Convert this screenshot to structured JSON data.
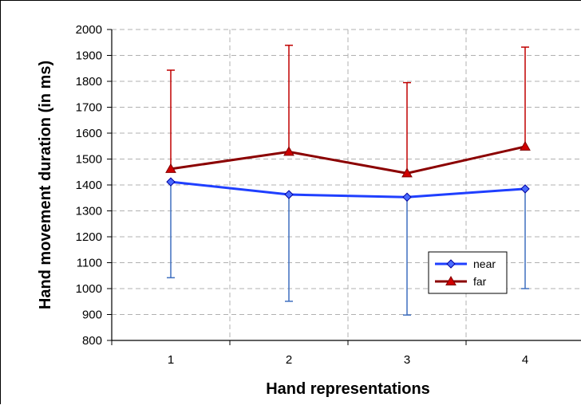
{
  "chart_data": {
    "type": "line",
    "title": "",
    "xlabel": "Hand representations",
    "ylabel": "Hand movement duration (in ms)",
    "categories": [
      "1",
      "2",
      "3",
      "4"
    ],
    "ylim": [
      800,
      2000
    ],
    "yticks": [
      "800",
      "900",
      "1000",
      "1100",
      "1200",
      "1300",
      "1400",
      "1500",
      "1600",
      "1700",
      "1800",
      "1900",
      "2000"
    ],
    "grid": true,
    "legend_position": "bottom-right",
    "series": [
      {
        "name": "near",
        "color": "#1f3fff",
        "error_color": "#3f6fbf",
        "marker": "diamond",
        "error_direction": "down",
        "values": [
          1412,
          1363,
          1353,
          1385
        ],
        "error_ends": [
          1042,
          951,
          898,
          1000
        ]
      },
      {
        "name": "far",
        "color": "#8b0000",
        "error_color": "#c00000",
        "marker": "triangle",
        "error_direction": "up",
        "values": [
          1462,
          1528,
          1445,
          1548
        ],
        "error_ends": [
          1843,
          1939,
          1795,
          1932
        ]
      }
    ]
  }
}
